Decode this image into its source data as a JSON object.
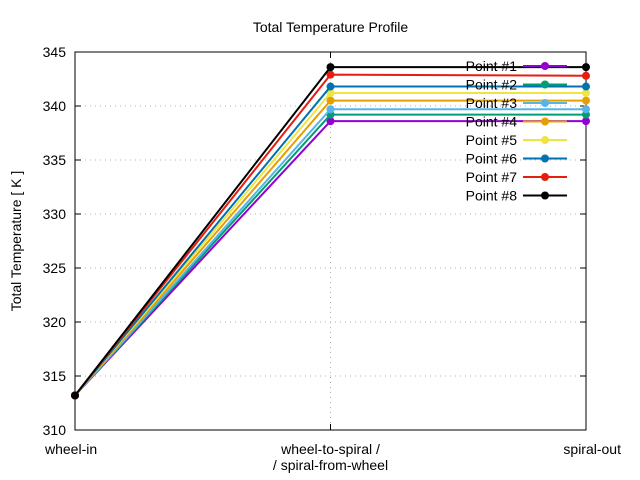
{
  "chart_data": {
    "type": "line",
    "title": "Total Temperature Profile",
    "xlabel": "",
    "ylabel": "Total Temperature [ K ]",
    "categories": [
      "wheel-in",
      "wheel-to-spiral /\n/ spiral-from-wheel",
      "spiral-out"
    ],
    "ylim": [
      310,
      345
    ],
    "yticks": [
      310,
      315,
      320,
      325,
      330,
      335,
      340,
      345
    ],
    "grid": true,
    "legend_position": "top-right",
    "series": [
      {
        "name": "Point #1",
        "color": "#9400d3",
        "values": [
          313.2,
          338.6,
          338.6
        ]
      },
      {
        "name": "Point #2",
        "color": "#009e73",
        "values": [
          313.2,
          339.2,
          339.2
        ]
      },
      {
        "name": "Point #3",
        "color": "#56b4e9",
        "values": [
          313.2,
          339.7,
          339.7
        ]
      },
      {
        "name": "Point #4",
        "color": "#e69f00",
        "values": [
          313.2,
          340.5,
          340.5
        ]
      },
      {
        "name": "Point #5",
        "color": "#f0e442",
        "values": [
          313.2,
          341.2,
          341.2
        ]
      },
      {
        "name": "Point #6",
        "color": "#0072b2",
        "values": [
          313.2,
          341.8,
          341.8
        ]
      },
      {
        "name": "Point #7",
        "color": "#e51e10",
        "values": [
          313.2,
          342.9,
          342.8
        ]
      },
      {
        "name": "Point #8",
        "color": "#000000",
        "values": [
          313.2,
          343.6,
          343.6
        ]
      }
    ]
  }
}
